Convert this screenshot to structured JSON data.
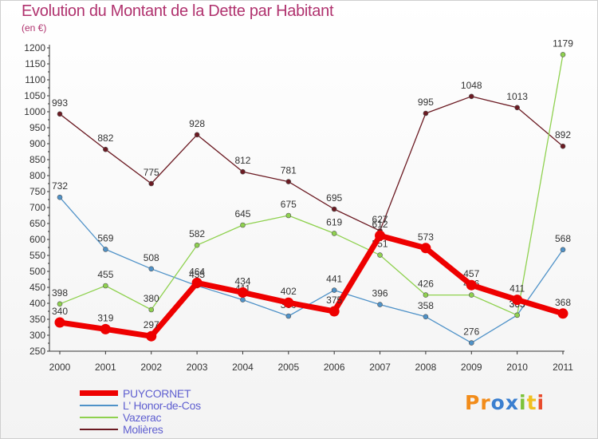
{
  "chart_data": {
    "type": "line",
    "title": "Evolution du Montant de la Dette par Habitant",
    "unit_label": "(en €)",
    "x": [
      "2000",
      "2001",
      "2002",
      "2003",
      "2004",
      "2005",
      "2006",
      "2007",
      "2008",
      "2009",
      "2010",
      "2011"
    ],
    "ylim": [
      250,
      1200
    ],
    "yticks": [
      250,
      300,
      350,
      400,
      450,
      500,
      550,
      600,
      650,
      700,
      750,
      800,
      850,
      900,
      950,
      1000,
      1050,
      1100,
      1150,
      1200
    ],
    "grid": false,
    "legend_position": "bottom-left",
    "series": [
      {
        "name": "Molières",
        "color": "#6b1a22",
        "values": [
          993,
          882,
          775,
          928,
          812,
          781,
          695,
          627,
          995,
          1048,
          1013,
          892
        ]
      },
      {
        "name": "L' Honor-de-Cos",
        "color": "#4f92c8",
        "values": [
          732,
          569,
          508,
          455,
          411,
          360,
          441,
          396,
          358,
          276,
          363,
          568
        ]
      },
      {
        "name": "Vazerac",
        "color": "#8fd14f",
        "values": [
          398,
          455,
          380,
          582,
          645,
          675,
          619,
          551,
          426,
          426,
          363,
          1179
        ]
      },
      {
        "name": "PUYCORNET",
        "color": "#ee0000",
        "values": [
          340,
          319,
          297,
          464,
          434,
          402,
          375,
          612,
          573,
          457,
          411,
          368
        ]
      }
    ]
  },
  "legend": [
    {
      "name": "PUYCORNET",
      "color": "#ee0000",
      "thickness": 7
    },
    {
      "name": "L' Honor-de-Cos",
      "color": "#4f92c8",
      "thickness": 2
    },
    {
      "name": "Vazerac",
      "color": "#8fd14f",
      "thickness": 2
    },
    {
      "name": "Molières",
      "color": "#6b1a22",
      "thickness": 2
    }
  ],
  "logo": {
    "letters": [
      "P",
      "r",
      "o",
      "x",
      "i",
      "t",
      "i"
    ],
    "colors": [
      "#f28c1a",
      "#f28c1a",
      "#3a7fd0",
      "#3a7fd0",
      "#7cc23a",
      "#f0c020",
      "#e84a2a"
    ]
  }
}
